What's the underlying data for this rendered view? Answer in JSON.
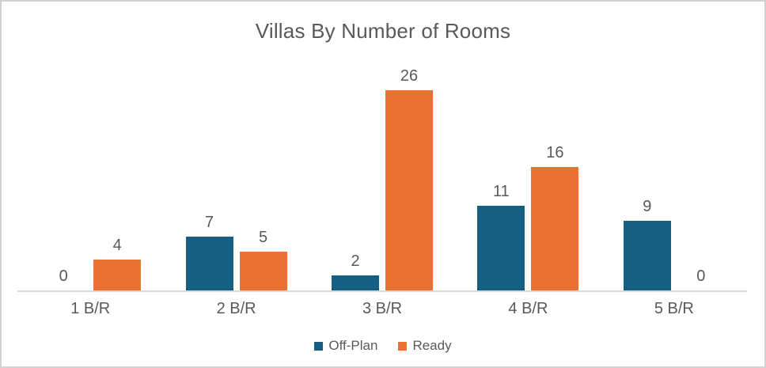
{
  "chart_data": {
    "type": "bar",
    "title": "Villas By Number of Rooms",
    "categories": [
      "1 B/R",
      "2 B/R",
      "3 B/R",
      "4 B/R",
      "5 B/R"
    ],
    "series": [
      {
        "name": "Off-Plan",
        "color": "#156082",
        "values": [
          0,
          7,
          2,
          11,
          9
        ]
      },
      {
        "name": "Ready",
        "color": "#E97132",
        "values": [
          4,
          5,
          26,
          16,
          0
        ]
      }
    ],
    "data_labels": true,
    "grid": false,
    "legend_position": "bottom",
    "xlabel": "",
    "ylabel": "",
    "ylim": [
      0,
      28
    ],
    "text_color": "#595959",
    "axis_line_color": "#D9D9D9"
  }
}
